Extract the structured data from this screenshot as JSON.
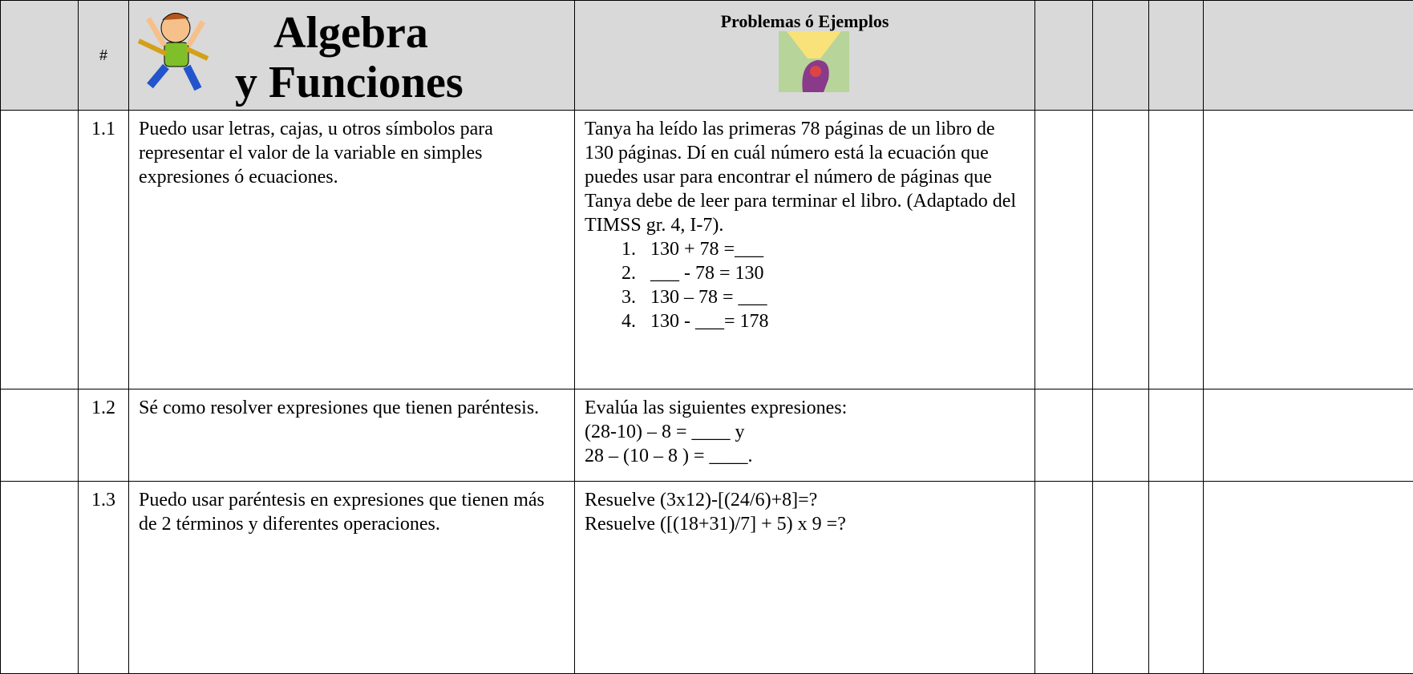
{
  "header": {
    "number": "#",
    "title_line1": "Algebra",
    "title_line2": "y Funciones",
    "examples": "Problemas ó Ejemplos"
  },
  "rows": [
    {
      "number": "1.1",
      "skill": "Puedo usar letras, cajas, u otros símbolos para representar el valor de la variable en simples expresiones ó ecuaciones.",
      "example": "Tanya ha leído las primeras 78 páginas de un libro de 130 páginas. Dí en cuál número está la ecuación que puedes usar para encontrar el número de páginas que Tanya debe de leer para terminar el libro. (Adaptado del TIMSS gr. 4, I-7).",
      "options": [
        {
          "marker": "1.",
          "text": "130 + 78 =___"
        },
        {
          "marker": "2.",
          "text": "___ - 78 = 130"
        },
        {
          "marker": "3.",
          "text": "130 – 78 = ___"
        },
        {
          "marker": "4.",
          "text": "130 - ___= 178"
        }
      ]
    },
    {
      "number": "1.2",
      "skill": "Sé como resolver expresiones que tienen paréntesis.",
      "example_lines": [
        "Evalúa las siguientes expresiones:",
        "(28-10) – 8 = ____ y",
        "28 – (10 – 8 ) = ____."
      ]
    },
    {
      "number": "1.3",
      "skill": "Puedo usar paréntesis en expresiones que tienen más de 2 términos y diferentes operaciones.",
      "example_lines": [
        "Resuelve (3x12)-[(24/6)+8]=?",
        "Resuelve ([(18+31)/7] + 5) x 9 =?"
      ]
    }
  ]
}
